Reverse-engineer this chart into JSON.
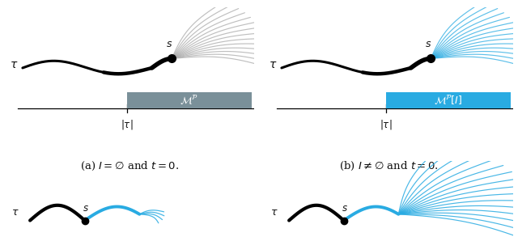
{
  "background_color": "#ffffff",
  "caption_a": "(a) $I = \\varnothing$ and $t = 0$.",
  "caption_b": "(b) $I \\neq \\varnothing$ and $t = 0$.",
  "tau_label": "$\\tau$",
  "s_label": "$s$",
  "tau_abs_label": "$|\\tau|$",
  "box_a_label": "$\\mathcal{M}^{\\mathcal{P}}$",
  "box_b_label": "$\\mathcal{M}^{\\mathcal{P}}[I]$",
  "gray_line_color": "#aaaaaa",
  "blue_color": "#29ABE2",
  "dark_color": "#111111",
  "box_gray": "#7a9099",
  "box_blue": "#29ABE2",
  "traj_color": "#111111"
}
